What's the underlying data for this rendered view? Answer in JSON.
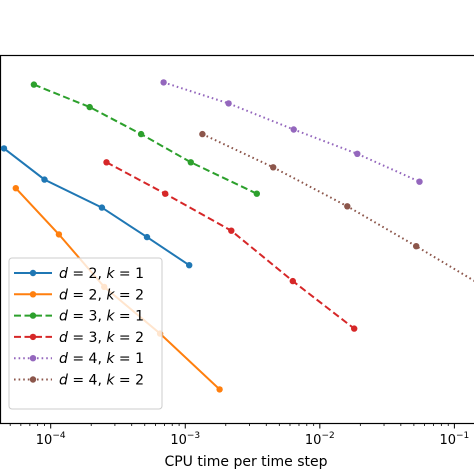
{
  "chart_data": {
    "type": "line",
    "xlabel": "CPU time per time step",
    "ylabel": "",
    "title": "",
    "xscale": "log",
    "yscale": "log",
    "xlim": [
      4.2e-05,
      0.155
    ],
    "ylim": [
      3.9e-06,
      0.0225
    ],
    "x_ticks": [
      {
        "base": "10",
        "exp": "−4",
        "value": 0.0001
      },
      {
        "base": "10",
        "exp": "−3",
        "value": 0.001
      },
      {
        "base": "10",
        "exp": "−2",
        "value": 0.01
      },
      {
        "base": "10",
        "exp": "−1",
        "value": 0.1
      }
    ],
    "grid": false,
    "legend_location": "lower-left",
    "series": [
      {
        "name": "d = 2, k = 1",
        "legend": {
          "d": "2",
          "k": "1"
        },
        "color": "#1f77b4",
        "linestyle": "solid",
        "x": [
          4.5e-05,
          9e-05,
          0.00024,
          0.00052,
          0.00107
        ],
        "y": [
          0.0025,
          0.0012,
          0.00062,
          0.00031,
          0.00016
        ]
      },
      {
        "name": "d = 2, k = 2",
        "legend": {
          "d": "2",
          "k": "2"
        },
        "color": "#ff7f0e",
        "linestyle": "solid",
        "x": [
          5.5e-05,
          0.000115,
          0.00025,
          0.00065,
          0.0018
        ],
        "y": [
          0.00098,
          0.00033,
          9.6e-05,
          3.2e-05,
          8.6e-06
        ]
      },
      {
        "name": "d = 3, k = 1",
        "legend": {
          "d": "3",
          "k": "1"
        },
        "color": "#2ca02c",
        "linestyle": "dashed",
        "x": [
          7.5e-05,
          0.000195,
          0.00047,
          0.0011,
          0.0034
        ],
        "y": [
          0.0112,
          0.0066,
          0.0035,
          0.0018,
          0.00086
        ]
      },
      {
        "name": "d = 3, k = 2",
        "legend": {
          "d": "3",
          "k": "2"
        },
        "color": "#d62728",
        "linestyle": "dashed",
        "x": [
          0.00026,
          0.00071,
          0.0022,
          0.0063,
          0.018
        ],
        "y": [
          0.0018,
          0.00086,
          0.00036,
          0.00011,
          3.6e-05
        ]
      },
      {
        "name": "d = 4, k = 1",
        "legend": {
          "d": "4",
          "k": "1"
        },
        "color": "#9467bd",
        "linestyle": "dotted",
        "x": [
          0.00069,
          0.0021,
          0.0064,
          0.019,
          0.055
        ],
        "y": [
          0.0118,
          0.0072,
          0.0039,
          0.0022,
          0.00114
        ]
      },
      {
        "name": "d = 4, k = 2",
        "legend": {
          "d": "4",
          "k": "2"
        },
        "color": "#8c564b",
        "linestyle": "dotted",
        "x": [
          0.00134,
          0.0045,
          0.016,
          0.052,
          0.155
        ],
        "y": [
          0.0035,
          0.0016,
          0.00064,
          0.00025,
          0.000102
        ]
      }
    ]
  }
}
